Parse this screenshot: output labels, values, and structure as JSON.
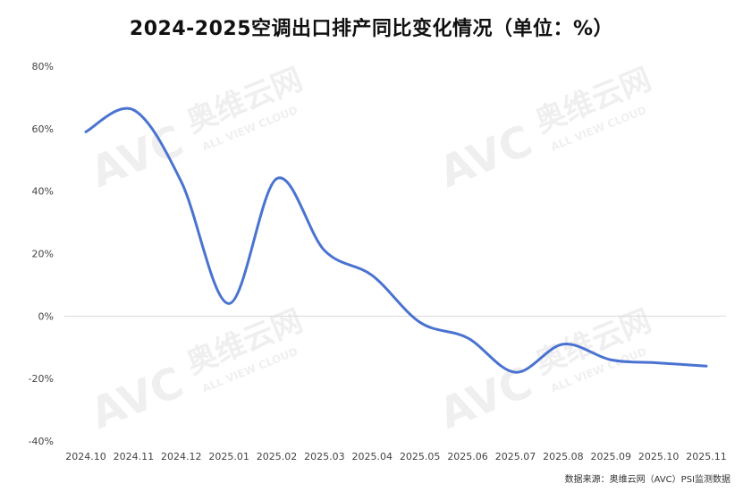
{
  "chart_data": {
    "type": "line",
    "title": "2024-2025空调出口排产同比变化情况（单位：%）",
    "xlabel": "",
    "ylabel": "",
    "categories": [
      "2024.10",
      "2024.11",
      "2024.12",
      "2025.01",
      "2025.02",
      "2025.03",
      "2025.04",
      "2025.05",
      "2025.06",
      "2025.07",
      "2025.08",
      "2025.09",
      "2025.10",
      "2025.11"
    ],
    "series": [
      {
        "values": [
          59,
          66,
          43,
          4,
          44,
          21,
          13,
          -2,
          -7,
          -18,
          -9,
          -14,
          -15,
          -16
        ]
      }
    ],
    "y_ticks": [
      "80%",
      "60%",
      "40%",
      "20%",
      "0%",
      "-20%",
      "-40%"
    ],
    "y_tick_values": [
      80,
      60,
      40,
      20,
      0,
      -20,
      -40
    ],
    "ylim": [
      -40,
      80
    ],
    "grid": false,
    "line_color": "#4a73d1"
  },
  "watermark": {
    "brand": "AVC",
    "cn": "奥维云网",
    "en": "ALL VIEW CLOUD"
  },
  "source": "数据来源：奥维云网（AVC）PSI监测数据"
}
